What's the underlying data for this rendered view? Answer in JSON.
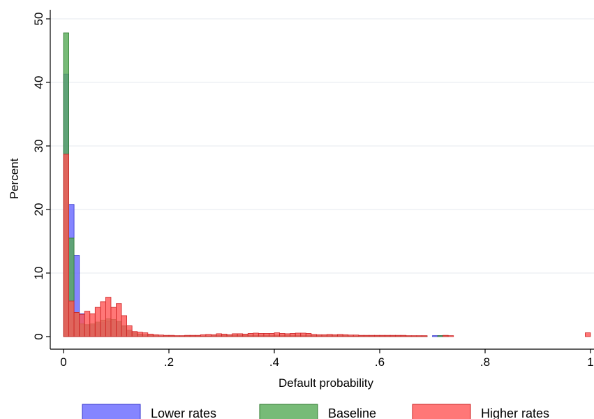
{
  "chart_data": {
    "type": "bar",
    "xlabel": "Default probability",
    "ylabel": "Percent",
    "xlim": [
      0,
      1
    ],
    "ylim": [
      0,
      50
    ],
    "x_ticks": [
      {
        "value": 0,
        "label": "0"
      },
      {
        "value": 0.2,
        "label": ".2"
      },
      {
        "value": 0.4,
        "label": ".4"
      },
      {
        "value": 0.6,
        "label": ".6"
      },
      {
        "value": 0.8,
        "label": ".8"
      },
      {
        "value": 1,
        "label": "1"
      }
    ],
    "y_ticks": [
      {
        "value": 0,
        "label": "0"
      },
      {
        "value": 10,
        "label": "10"
      },
      {
        "value": 20,
        "label": "20"
      },
      {
        "value": 30,
        "label": "30"
      },
      {
        "value": 40,
        "label": "40"
      },
      {
        "value": 50,
        "label": "50"
      }
    ],
    "grid": true,
    "legend_position": "bottom",
    "bin_width": 0.01,
    "series": [
      {
        "name": "Lower rates",
        "color": "#6666ff",
        "edge_color": "#3333cc",
        "x": [
          0.005,
          0.015,
          0.025,
          0.035,
          0.045,
          0.055,
          0.065,
          0.075,
          0.085,
          0.095,
          0.105,
          0.115,
          0.125,
          0.135,
          0.145,
          0.155,
          0.165,
          0.175,
          0.185,
          0.195,
          0.205,
          0.215,
          0.225,
          0.235,
          0.245,
          0.255,
          0.265,
          0.275,
          0.285,
          0.295,
          0.305,
          0.315,
          0.325,
          0.335,
          0.345,
          0.355,
          0.365,
          0.375,
          0.385,
          0.395,
          0.405,
          0.415,
          0.425,
          0.435,
          0.445,
          0.455,
          0.465,
          0.475,
          0.485,
          0.495,
          0.505,
          0.515,
          0.525,
          0.535,
          0.545,
          0.555,
          0.565,
          0.575,
          0.585,
          0.595,
          0.605,
          0.615,
          0.625,
          0.635,
          0.645,
          0.655,
          0.665,
          0.675,
          0.685,
          0.705,
          0.715
        ],
        "values": [
          41.3,
          20.8,
          12.8,
          3.6,
          1.8,
          1.8,
          2.0,
          2.2,
          2.4,
          2.5,
          2.2,
          1.6,
          1.0,
          0.6,
          0.4,
          0.3,
          0.2,
          0.15,
          0.1,
          0.1,
          0.1,
          0.1,
          0.1,
          0.1,
          0.1,
          0.1,
          0.1,
          0.1,
          0.15,
          0.15,
          0.2,
          0.2,
          0.2,
          0.2,
          0.2,
          0.2,
          0.2,
          0.2,
          0.2,
          0.2,
          0.2,
          0.2,
          0.2,
          0.2,
          0.2,
          0.2,
          0.2,
          0.15,
          0.15,
          0.15,
          0.15,
          0.15,
          0.15,
          0.15,
          0.1,
          0.1,
          0.1,
          0.1,
          0.1,
          0.1,
          0.1,
          0.1,
          0.1,
          0.1,
          0.1,
          0.1,
          0.1,
          0.1,
          0.1,
          0.15,
          0.15
        ]
      },
      {
        "name": "Baseline",
        "color": "#55aa55",
        "edge_color": "#2d7a2d",
        "x": [
          0.005,
          0.015,
          0.025,
          0.035,
          0.045,
          0.055,
          0.065,
          0.075,
          0.085,
          0.095,
          0.105,
          0.115,
          0.125,
          0.135,
          0.145,
          0.155,
          0.165,
          0.175,
          0.185,
          0.195,
          0.205,
          0.215,
          0.225,
          0.235,
          0.245,
          0.255,
          0.265,
          0.275,
          0.285,
          0.295,
          0.305,
          0.315,
          0.325,
          0.335,
          0.345,
          0.355,
          0.365,
          0.375,
          0.385,
          0.395,
          0.405,
          0.415,
          0.425,
          0.435,
          0.445,
          0.455,
          0.465,
          0.475,
          0.485,
          0.495,
          0.505,
          0.515,
          0.525,
          0.535,
          0.545,
          0.555,
          0.565,
          0.575,
          0.585,
          0.595,
          0.605,
          0.615,
          0.625,
          0.635,
          0.645,
          0.655,
          0.665,
          0.675,
          0.685,
          0.715,
          0.725
        ],
        "values": [
          47.8,
          15.5,
          3.8,
          2.0,
          1.9,
          2.0,
          2.3,
          2.6,
          2.8,
          2.7,
          2.4,
          1.7,
          1.0,
          0.6,
          0.4,
          0.3,
          0.2,
          0.15,
          0.1,
          0.1,
          0.1,
          0.1,
          0.1,
          0.1,
          0.1,
          0.1,
          0.1,
          0.1,
          0.15,
          0.15,
          0.2,
          0.2,
          0.2,
          0.2,
          0.2,
          0.2,
          0.2,
          0.2,
          0.2,
          0.2,
          0.2,
          0.2,
          0.2,
          0.2,
          0.2,
          0.2,
          0.2,
          0.15,
          0.15,
          0.15,
          0.15,
          0.15,
          0.15,
          0.15,
          0.1,
          0.1,
          0.1,
          0.1,
          0.1,
          0.1,
          0.1,
          0.1,
          0.1,
          0.1,
          0.1,
          0.1,
          0.1,
          0.1,
          0.1,
          0.15,
          0.15
        ]
      },
      {
        "name": "Higher rates",
        "color": "#ff5555",
        "edge_color": "#cc2222",
        "x": [
          0.005,
          0.015,
          0.025,
          0.035,
          0.045,
          0.055,
          0.065,
          0.075,
          0.085,
          0.095,
          0.105,
          0.115,
          0.125,
          0.135,
          0.145,
          0.155,
          0.165,
          0.175,
          0.185,
          0.195,
          0.205,
          0.215,
          0.225,
          0.235,
          0.245,
          0.255,
          0.265,
          0.275,
          0.285,
          0.295,
          0.305,
          0.315,
          0.325,
          0.335,
          0.345,
          0.355,
          0.365,
          0.375,
          0.385,
          0.395,
          0.405,
          0.415,
          0.425,
          0.435,
          0.445,
          0.455,
          0.465,
          0.475,
          0.485,
          0.495,
          0.505,
          0.515,
          0.525,
          0.535,
          0.545,
          0.555,
          0.565,
          0.575,
          0.585,
          0.595,
          0.605,
          0.615,
          0.625,
          0.635,
          0.645,
          0.655,
          0.665,
          0.675,
          0.685,
          0.725,
          0.735,
          0.995
        ],
        "values": [
          28.7,
          5.6,
          3.8,
          3.5,
          4.0,
          3.6,
          4.6,
          5.5,
          6.2,
          4.6,
          5.2,
          3.3,
          1.7,
          0.8,
          0.7,
          0.6,
          0.4,
          0.3,
          0.25,
          0.2,
          0.2,
          0.15,
          0.15,
          0.2,
          0.2,
          0.2,
          0.3,
          0.35,
          0.3,
          0.45,
          0.4,
          0.3,
          0.45,
          0.45,
          0.4,
          0.5,
          0.55,
          0.5,
          0.5,
          0.5,
          0.6,
          0.5,
          0.45,
          0.5,
          0.55,
          0.55,
          0.5,
          0.35,
          0.3,
          0.3,
          0.35,
          0.3,
          0.35,
          0.3,
          0.25,
          0.25,
          0.2,
          0.2,
          0.2,
          0.2,
          0.2,
          0.2,
          0.2,
          0.2,
          0.2,
          0.15,
          0.15,
          0.15,
          0.15,
          0.2,
          0.15,
          0.6
        ]
      }
    ]
  }
}
